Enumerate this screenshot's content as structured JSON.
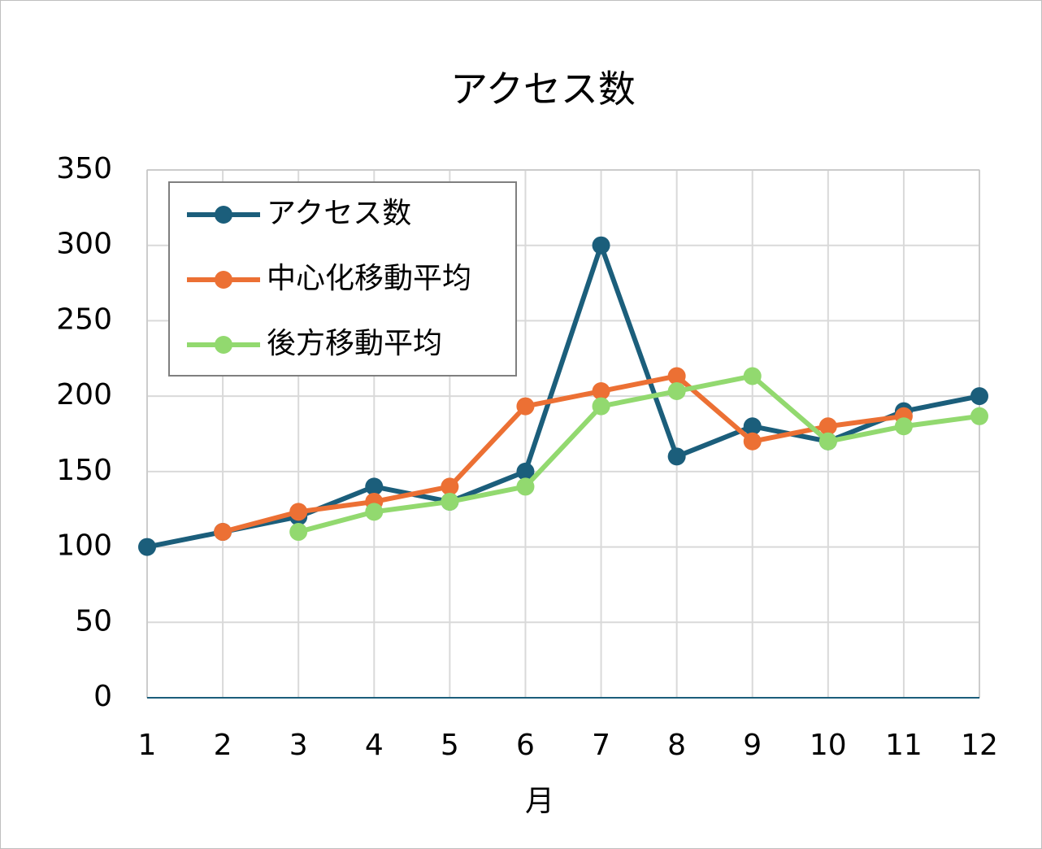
{
  "chart_data": {
    "type": "line",
    "title": "アクセス数",
    "x_label": "月",
    "x": [
      1,
      2,
      3,
      4,
      5,
      6,
      7,
      8,
      9,
      10,
      11,
      12
    ],
    "xlim": [
      1,
      12
    ],
    "xticks": [
      1,
      2,
      3,
      4,
      5,
      6,
      7,
      8,
      9,
      10,
      11,
      12
    ],
    "ylim": [
      0,
      350
    ],
    "yticks": [
      0,
      50,
      100,
      150,
      200,
      250,
      300,
      350
    ],
    "grid": true,
    "legend": "upper-left",
    "series": [
      {
        "name": "アクセス数",
        "color": "#1b5e7b",
        "values": [
          100,
          110,
          120,
          140,
          130,
          150,
          300,
          160,
          180,
          170,
          190,
          200
        ]
      },
      {
        "name": "中心化移動平均",
        "color": "#ec7034",
        "values": [
          null,
          110,
          123.3,
          130,
          140,
          193.3,
          203.3,
          213.3,
          170,
          180,
          186.7,
          null
        ]
      },
      {
        "name": "後方移動平均",
        "color": "#92d96f",
        "values": [
          null,
          null,
          110,
          123.3,
          130,
          140,
          193.3,
          203.3,
          213.3,
          170,
          180,
          186.7
        ]
      }
    ]
  }
}
